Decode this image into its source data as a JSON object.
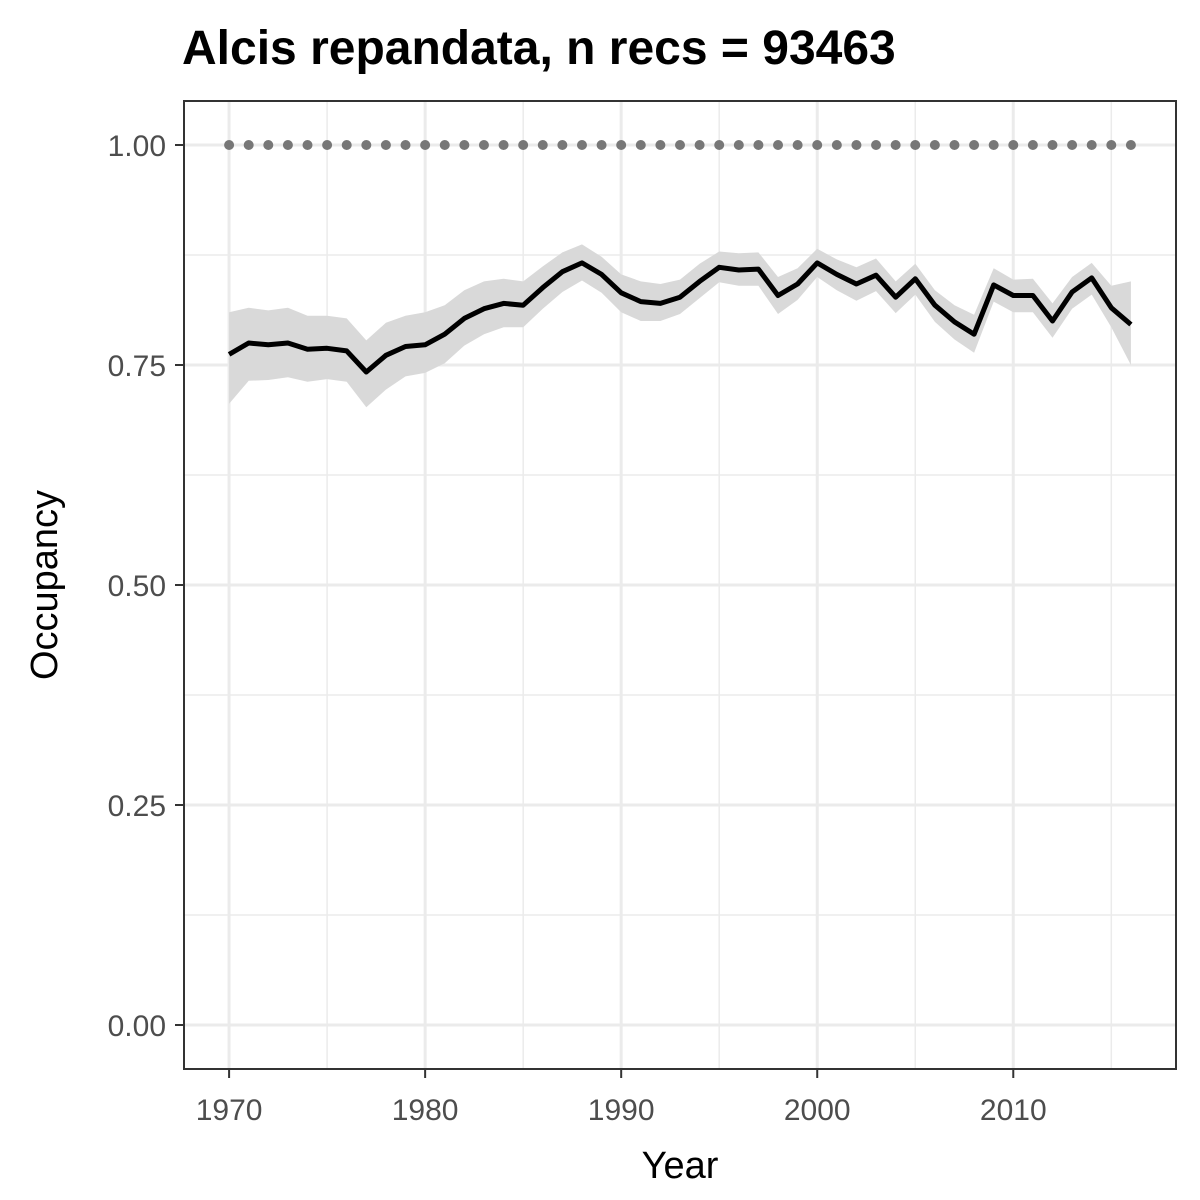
{
  "chart_data": {
    "type": "line",
    "title": "Alcis repandata, n recs = 93463",
    "xlabel": "Year",
    "ylabel": "Occupancy",
    "xlim": [
      1967.7,
      2018.3
    ],
    "ylim": [
      -0.05,
      1.05
    ],
    "x_ticks": [
      "1970",
      "1980",
      "1990",
      "2000",
      "2010"
    ],
    "y_ticks": [
      "0.00",
      "0.25",
      "0.50",
      "0.75",
      "1.00"
    ],
    "grid": true,
    "colors": {
      "line": "#000000",
      "ribbon": "#d9d9d9",
      "reference_points": "#777777",
      "grid": "#ebebeb",
      "panel_border": "#333333"
    },
    "x": [
      1970,
      1971,
      1972,
      1973,
      1974,
      1975,
      1976,
      1977,
      1978,
      1979,
      1980,
      1981,
      1982,
      1983,
      1984,
      1985,
      1986,
      1987,
      1988,
      1989,
      1990,
      1991,
      1992,
      1993,
      1994,
      1995,
      1996,
      1997,
      1998,
      1999,
      2000,
      2001,
      2002,
      2003,
      2004,
      2005,
      2006,
      2007,
      2008,
      2009,
      2010,
      2011,
      2012,
      2013,
      2014,
      2015,
      2016
    ],
    "series": [
      {
        "values": [
          0.762,
          0.775,
          0.773,
          0.775,
          0.768,
          0.769,
          0.766,
          0.742,
          0.761,
          0.771,
          0.773,
          0.785,
          0.803,
          0.814,
          0.82,
          0.818,
          0.838,
          0.856,
          0.866,
          0.853,
          0.832,
          0.822,
          0.82,
          0.827,
          0.845,
          0.861,
          0.858,
          0.859,
          0.829,
          0.842,
          0.866,
          0.853,
          0.842,
          0.852,
          0.827,
          0.848,
          0.818,
          0.799,
          0.785,
          0.841,
          0.829,
          0.829,
          0.8,
          0.833,
          0.849,
          0.815,
          0.796
        ],
        "lower": [
          0.706,
          0.732,
          0.733,
          0.736,
          0.731,
          0.734,
          0.731,
          0.702,
          0.722,
          0.737,
          0.741,
          0.752,
          0.772,
          0.785,
          0.793,
          0.793,
          0.814,
          0.833,
          0.846,
          0.832,
          0.81,
          0.8,
          0.8,
          0.808,
          0.826,
          0.844,
          0.84,
          0.84,
          0.808,
          0.824,
          0.85,
          0.835,
          0.823,
          0.834,
          0.809,
          0.83,
          0.799,
          0.779,
          0.764,
          0.822,
          0.81,
          0.81,
          0.781,
          0.814,
          0.83,
          0.793,
          0.75
        ],
        "upper": [
          0.81,
          0.815,
          0.812,
          0.815,
          0.806,
          0.806,
          0.803,
          0.778,
          0.798,
          0.806,
          0.81,
          0.818,
          0.835,
          0.845,
          0.848,
          0.845,
          0.862,
          0.878,
          0.887,
          0.873,
          0.853,
          0.845,
          0.842,
          0.847,
          0.865,
          0.879,
          0.877,
          0.878,
          0.85,
          0.86,
          0.882,
          0.87,
          0.861,
          0.871,
          0.845,
          0.865,
          0.835,
          0.818,
          0.807,
          0.86,
          0.847,
          0.848,
          0.82,
          0.85,
          0.866,
          0.84,
          0.845
        ]
      }
    ],
    "reference_line": {
      "style": "dotted",
      "x": [
        1970,
        1971,
        1972,
        1973,
        1974,
        1975,
        1976,
        1977,
        1978,
        1979,
        1980,
        1981,
        1982,
        1983,
        1984,
        1985,
        1986,
        1987,
        1988,
        1989,
        1990,
        1991,
        1992,
        1993,
        1994,
        1995,
        1996,
        1997,
        1998,
        1999,
        2000,
        2001,
        2002,
        2003,
        2004,
        2005,
        2006,
        2007,
        2008,
        2009,
        2010,
        2011,
        2012,
        2013,
        2014,
        2015,
        2016
      ],
      "y": 1.0
    }
  }
}
